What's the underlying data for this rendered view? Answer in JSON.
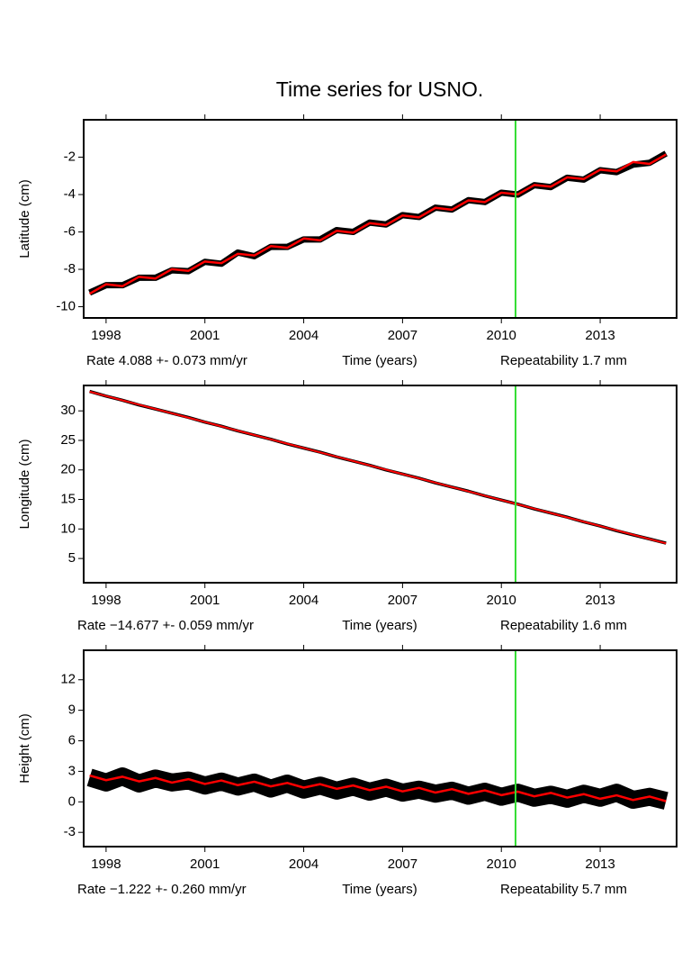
{
  "title": "Time series for USNO.",
  "chart_data": [
    {
      "type": "line",
      "ylabel": "Latitude (cm)",
      "xlabel": "Time (years)",
      "rate": "Rate 4.088 +- 0.073 mm/yr",
      "repeatability": "Repeatability 1.7 mm",
      "xlim": [
        1997.32,
        2015.32
      ],
      "xticks": [
        1998,
        2001,
        2004,
        2007,
        2010,
        2013
      ],
      "ylim": [
        -10.6,
        0
      ],
      "yticks": [
        -10,
        -8,
        -6,
        -4,
        -2
      ],
      "vline": 2010.43,
      "vline_color": "#33dd33",
      "x": [
        1997.5,
        1998,
        1998.5,
        1999,
        1999.5,
        2000,
        2000.5,
        2001,
        2001.5,
        2002,
        2002.5,
        2003,
        2003.5,
        2004,
        2004.5,
        2005,
        2005.5,
        2006,
        2006.5,
        2007,
        2007.5,
        2008,
        2008.5,
        2009,
        2009.5,
        2010,
        2010.5,
        2011,
        2011.5,
        2012,
        2012.5,
        2013,
        2013.5,
        2014,
        2014.5,
        2015
      ],
      "series": [
        {
          "color": "#000000",
          "values": [
            -9.25,
            -8.85,
            -8.85,
            -8.45,
            -8.45,
            -8.05,
            -8.1,
            -7.6,
            -7.7,
            -7.1,
            -7.3,
            -6.8,
            -6.8,
            -6.4,
            -6.4,
            -5.9,
            -6.0,
            -5.5,
            -5.6,
            -5.1,
            -5.2,
            -4.7,
            -4.8,
            -4.3,
            -4.4,
            -3.9,
            -4.0,
            -3.5,
            -3.6,
            -3.1,
            -3.2,
            -2.7,
            -2.8,
            -2.4,
            -2.3,
            -1.8
          ]
        },
        {
          "color": "#ff0000",
          "values": [
            -9.31,
            -8.8,
            -8.9,
            -8.4,
            -8.49,
            -7.99,
            -8.08,
            -7.58,
            -7.67,
            -7.17,
            -7.26,
            -6.76,
            -6.85,
            -6.35,
            -6.45,
            -5.94,
            -6.04,
            -5.53,
            -5.63,
            -5.12,
            -5.22,
            -4.71,
            -4.81,
            -4.31,
            -4.4,
            -3.9,
            -3.99,
            -3.49,
            -3.58,
            -3.08,
            -3.17,
            -2.67,
            -2.76,
            -2.26,
            -2.36,
            -1.85
          ]
        }
      ]
    },
    {
      "type": "line",
      "ylabel": "Longitude (cm)",
      "xlabel": "Time (years)",
      "rate": "Rate −14.677 +- 0.059 mm/yr",
      "repeatability": "Repeatability 1.6 mm",
      "xlim": [
        1997.32,
        2015.32
      ],
      "xticks": [
        1998,
        2001,
        2004,
        2007,
        2010,
        2013
      ],
      "ylim": [
        0.9,
        34.3
      ],
      "yticks": [
        5,
        10,
        15,
        20,
        25,
        30
      ],
      "vline": 2010.43,
      "vline_color": "#33dd33",
      "x": [
        1997.5,
        1998,
        1998.5,
        1999,
        1999.5,
        2000,
        2000.5,
        2001,
        2001.5,
        2002,
        2002.5,
        2003,
        2003.5,
        2004,
        2004.5,
        2005,
        2005.5,
        2006,
        2006.5,
        2007,
        2007.5,
        2008,
        2008.5,
        2009,
        2009.5,
        2010,
        2010.5,
        2011,
        2011.5,
        2012,
        2012.5,
        2013,
        2013.5,
        2014,
        2014.5,
        2015
      ],
      "series": [
        {
          "color": "#000000",
          "values": [
            33.3,
            32.5,
            31.8,
            31.0,
            30.3,
            29.6,
            28.9,
            28.1,
            27.4,
            26.6,
            25.9,
            25.2,
            24.4,
            23.7,
            23.0,
            22.2,
            21.5,
            20.8,
            20.0,
            19.3,
            18.6,
            17.8,
            17.1,
            16.4,
            15.6,
            14.9,
            14.2,
            13.4,
            12.7,
            12.0,
            11.2,
            10.5,
            9.7,
            9.0,
            8.3,
            7.6
          ]
        },
        {
          "color": "#ff0000",
          "values": [
            33.25,
            32.52,
            31.78,
            31.05,
            30.32,
            29.58,
            28.85,
            28.11,
            27.38,
            26.64,
            25.91,
            25.18,
            24.44,
            23.71,
            22.97,
            22.24,
            21.51,
            20.77,
            20.04,
            19.3,
            18.57,
            17.84,
            17.1,
            16.37,
            15.63,
            14.9,
            14.17,
            13.43,
            12.7,
            11.96,
            11.23,
            10.5,
            9.76,
            9.03,
            8.29,
            7.56
          ]
        }
      ]
    },
    {
      "type": "line",
      "ylabel": "Height (cm)",
      "xlabel": "Time (years)",
      "rate": "Rate −1.222 +- 0.260 mm/yr",
      "repeatability": "Repeatability 5.7 mm",
      "xlim": [
        1997.32,
        2015.32
      ],
      "xticks": [
        1998,
        2001,
        2004,
        2007,
        2010,
        2013
      ],
      "ylim": [
        -4.4,
        14.9
      ],
      "yticks": [
        -3,
        0,
        3,
        6,
        9,
        12
      ],
      "vline": 2010.43,
      "vline_color": "#33dd33",
      "x": [
        1997.5,
        1998,
        1998.5,
        1999,
        1999.5,
        2000,
        2000.5,
        2001,
        2001.5,
        2002,
        2002.5,
        2003,
        2003.5,
        2004,
        2004.5,
        2005,
        2005.5,
        2006,
        2006.5,
        2007,
        2007.5,
        2008,
        2008.5,
        2009,
        2009.5,
        2010,
        2010.5,
        2011,
        2011.5,
        2012,
        2012.5,
        2013,
        2013.5,
        2014,
        2014.5,
        2015
      ],
      "series": [
        {
          "color": "#000000",
          "values": [
            2.4,
            1.9,
            2.5,
            1.8,
            2.3,
            1.9,
            2.1,
            1.6,
            2.0,
            1.5,
            1.9,
            1.3,
            1.8,
            1.2,
            1.6,
            1.1,
            1.5,
            1.0,
            1.4,
            0.9,
            1.2,
            0.8,
            1.1,
            0.6,
            1.0,
            0.5,
            0.9,
            0.4,
            0.7,
            0.3,
            0.8,
            0.4,
            0.9,
            0.2,
            0.5,
            0.1
          ]
        },
        {
          "color": "#ff0000",
          "values": [
            2.59,
            2.13,
            2.47,
            2.01,
            2.35,
            1.89,
            2.23,
            1.76,
            2.1,
            1.64,
            1.98,
            1.52,
            1.86,
            1.4,
            1.74,
            1.28,
            1.61,
            1.15,
            1.49,
            1.03,
            1.37,
            0.91,
            1.25,
            0.79,
            1.13,
            0.66,
            1.0,
            0.54,
            0.88,
            0.42,
            0.76,
            0.3,
            0.64,
            0.18,
            0.52,
            0.06
          ]
        }
      ]
    }
  ]
}
